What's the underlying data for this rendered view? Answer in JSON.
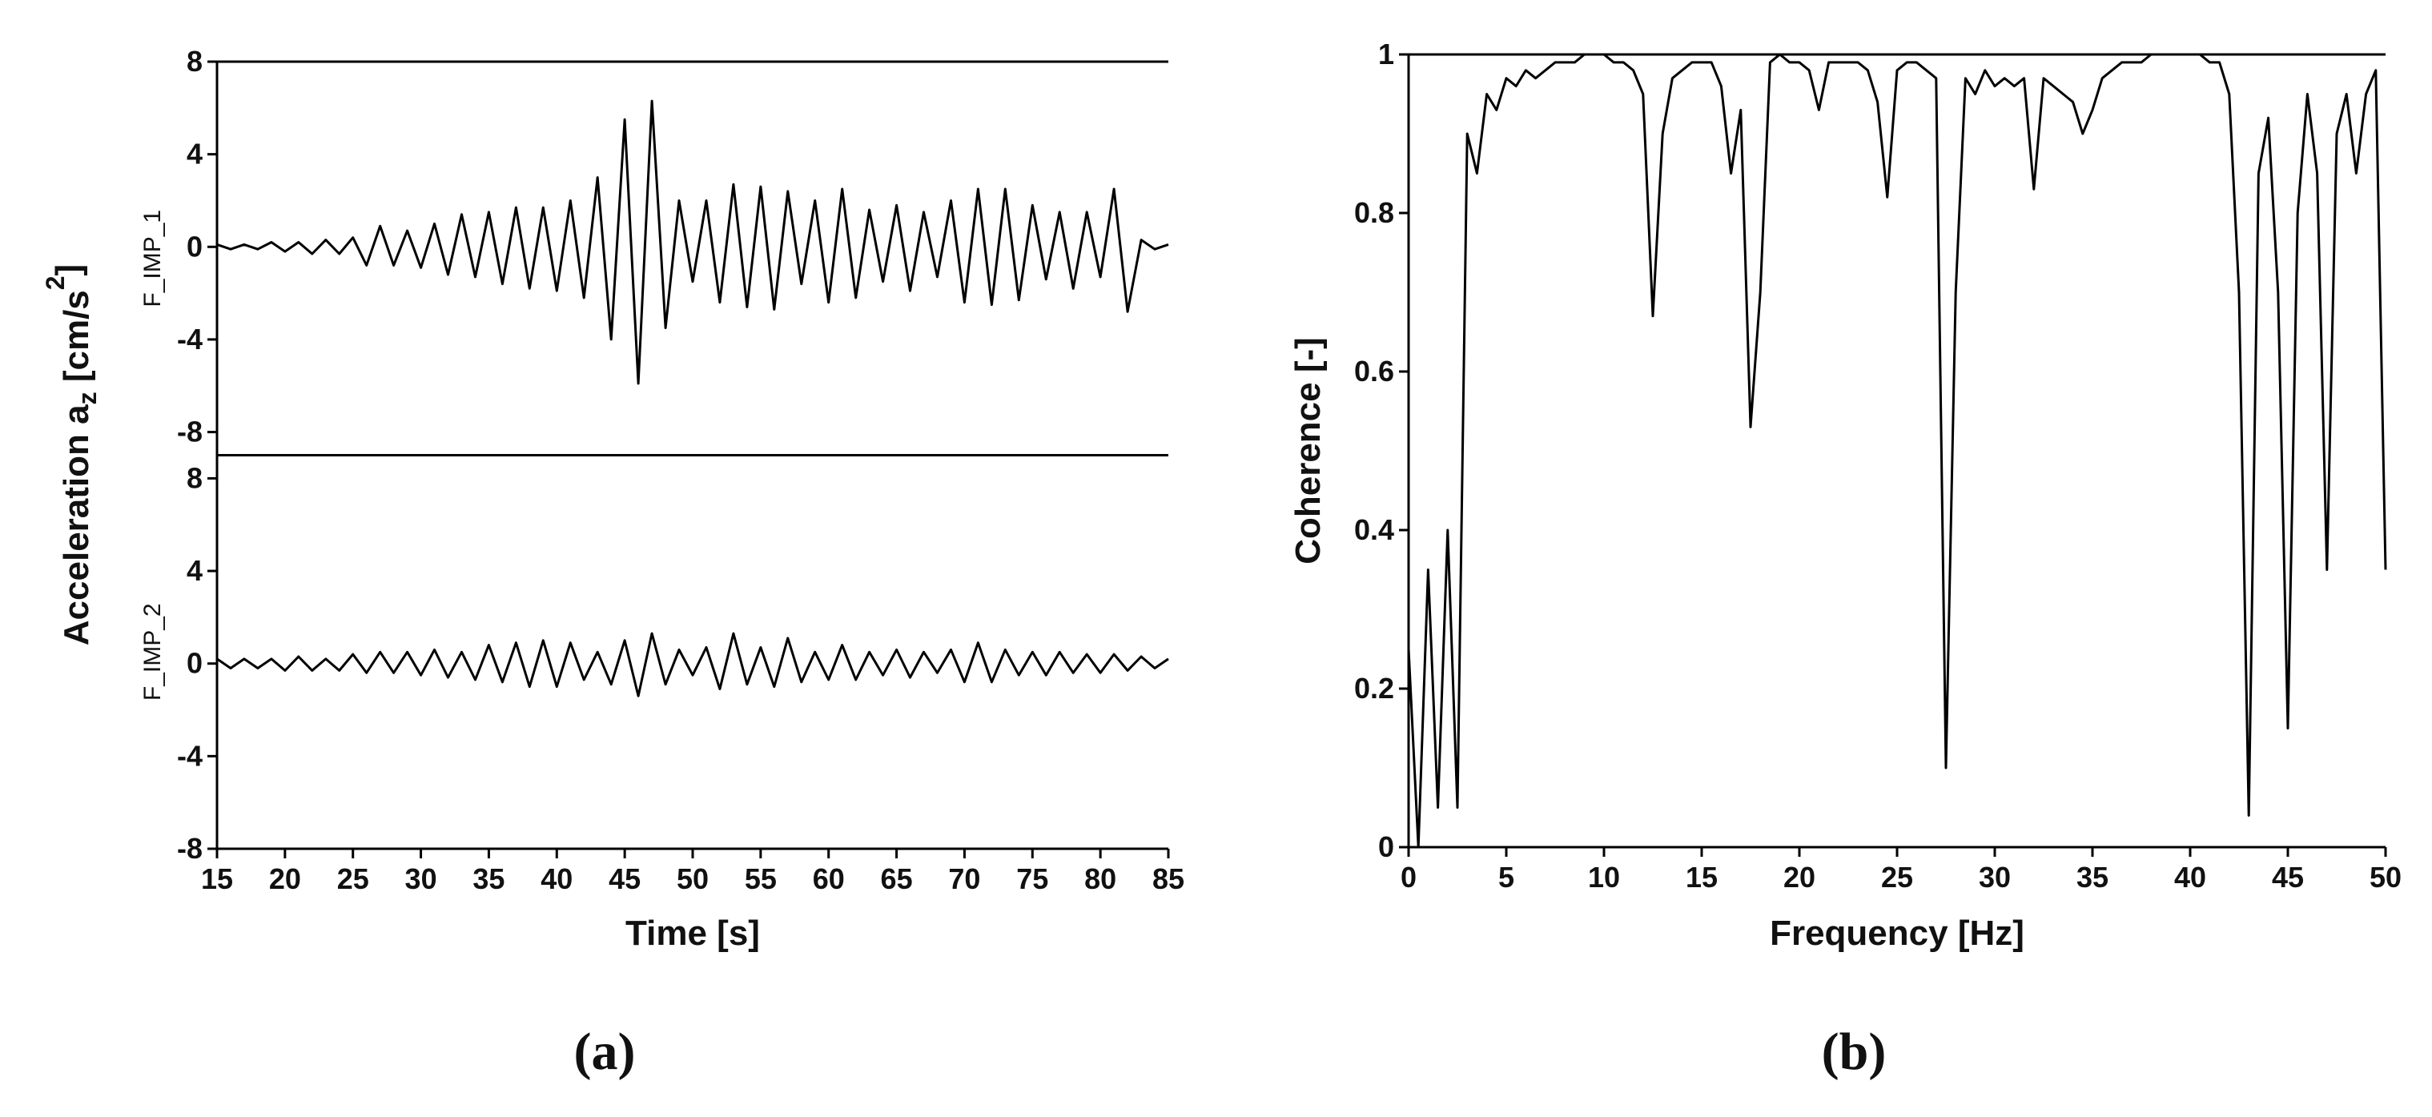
{
  "chart_data": [
    {
      "type": "line",
      "label": "(a)",
      "xlabel": "Time [s]",
      "ylabel": {
        "text": "Acceleration a",
        "sub": "z",
        "unit": " [cm/s",
        "sup": "2",
        "close": "]"
      },
      "xlim": [
        15,
        85
      ],
      "xticks": [
        15,
        20,
        25,
        30,
        35,
        40,
        45,
        50,
        55,
        60,
        65,
        70,
        75,
        80,
        85
      ],
      "x": [
        15,
        16,
        17,
        18,
        19,
        20,
        21,
        22,
        23,
        24,
        25,
        26,
        27,
        28,
        29,
        30,
        31,
        32,
        33,
        34,
        35,
        36,
        37,
        38,
        39,
        40,
        41,
        42,
        43,
        44,
        45,
        46,
        47,
        48,
        49,
        50,
        51,
        52,
        53,
        54,
        55,
        56,
        57,
        58,
        59,
        60,
        61,
        62,
        63,
        64,
        65,
        66,
        67,
        68,
        69,
        70,
        71,
        72,
        73,
        74,
        75,
        76,
        77,
        78,
        79,
        80,
        81,
        82,
        83,
        84,
        85
      ],
      "panels": [
        {
          "ylim": [
            -9,
            8
          ],
          "yticks": [
            -8,
            -4,
            0,
            4,
            8
          ],
          "series": [
            {
              "name": "F_IMP_1",
              "color": "#000000",
              "values": [
                0.1,
                -0.1,
                0.1,
                -0.1,
                0.2,
                -0.2,
                0.2,
                -0.3,
                0.3,
                -0.3,
                0.4,
                -0.8,
                0.9,
                -0.8,
                0.7,
                -0.9,
                1.0,
                -1.2,
                1.4,
                -1.3,
                1.5,
                -1.6,
                1.7,
                -1.8,
                1.7,
                -1.9,
                2.0,
                -2.2,
                3.0,
                -4.0,
                5.5,
                -5.9,
                6.3,
                -3.5,
                2.0,
                -1.5,
                2.0,
                -2.4,
                2.7,
                -2.6,
                2.6,
                -2.7,
                2.4,
                -1.6,
                2.0,
                -2.4,
                2.5,
                -2.2,
                1.6,
                -1.5,
                1.8,
                -1.9,
                1.5,
                -1.3,
                2.0,
                -2.4,
                2.5,
                -2.5,
                2.5,
                -2.3,
                1.8,
                -1.4,
                1.5,
                -1.8,
                1.5,
                -1.3,
                2.5,
                -2.8,
                0.3,
                -0.1,
                0.1
              ]
            }
          ]
        },
        {
          "ylim": [
            -8,
            9
          ],
          "yticks": [
            -8,
            -4,
            0,
            4,
            8
          ],
          "series": [
            {
              "name": "F_IMP_2",
              "color": "#000000",
              "values": [
                0.2,
                -0.2,
                0.2,
                -0.2,
                0.2,
                -0.3,
                0.3,
                -0.3,
                0.2,
                -0.3,
                0.4,
                -0.4,
                0.5,
                -0.4,
                0.5,
                -0.5,
                0.6,
                -0.6,
                0.5,
                -0.7,
                0.8,
                -0.8,
                0.9,
                -1.0,
                1.0,
                -1.0,
                0.9,
                -0.7,
                0.5,
                -0.9,
                1.0,
                -1.4,
                1.3,
                -0.9,
                0.6,
                -0.5,
                0.7,
                -1.1,
                1.3,
                -0.9,
                0.7,
                -1.0,
                1.1,
                -0.8,
                0.5,
                -0.7,
                0.8,
                -0.7,
                0.5,
                -0.5,
                0.6,
                -0.6,
                0.5,
                -0.4,
                0.6,
                -0.8,
                0.9,
                -0.8,
                0.6,
                -0.5,
                0.5,
                -0.5,
                0.5,
                -0.4,
                0.4,
                -0.4,
                0.4,
                -0.3,
                0.3,
                -0.2,
                0.2
              ]
            }
          ]
        }
      ]
    },
    {
      "type": "line",
      "label": "(b)",
      "xlabel": "Frequency [Hz]",
      "ylabel": "Coherence [-]",
      "xlim": [
        0,
        50
      ],
      "xticks": [
        0,
        5,
        10,
        15,
        20,
        25,
        30,
        35,
        40,
        45,
        50
      ],
      "ylim": [
        0,
        1
      ],
      "yticks": [
        0,
        0.2,
        0.4,
        0.6,
        0.8,
        1
      ],
      "x": [
        0,
        0.5,
        1,
        1.5,
        2,
        2.5,
        3,
        3.5,
        4,
        4.5,
        5,
        5.5,
        6,
        6.5,
        7,
        7.5,
        8,
        8.5,
        9,
        9.5,
        10,
        10.5,
        11,
        11.5,
        12,
        12.5,
        13,
        13.5,
        14,
        14.5,
        15,
        15.5,
        16,
        16.5,
        17,
        17.5,
        18,
        18.5,
        19,
        19.5,
        20,
        20.5,
        21,
        21.5,
        22,
        22.5,
        23,
        23.5,
        24,
        24.5,
        25,
        25.5,
        26,
        26.5,
        27,
        27.5,
        28,
        28.5,
        29,
        29.5,
        30,
        30.5,
        31,
        31.5,
        32,
        32.5,
        33,
        33.5,
        34,
        34.5,
        35,
        35.5,
        36,
        36.5,
        37,
        37.5,
        38,
        38.5,
        39,
        39.5,
        40,
        40.5,
        41,
        41.5,
        42,
        42.5,
        43,
        43.5,
        44,
        44.5,
        45,
        45.5,
        46,
        46.5,
        47,
        47.5,
        48,
        48.5,
        49,
        49.5,
        50
      ],
      "series": [
        {
          "color": "#000000",
          "values": [
            0.25,
            0.0,
            0.35,
            0.05,
            0.4,
            0.05,
            0.9,
            0.85,
            0.95,
            0.93,
            0.97,
            0.96,
            0.98,
            0.97,
            0.98,
            0.99,
            0.99,
            0.99,
            1.0,
            1.0,
            1.0,
            0.99,
            0.99,
            0.98,
            0.95,
            0.67,
            0.9,
            0.97,
            0.98,
            0.99,
            0.99,
            0.99,
            0.96,
            0.85,
            0.93,
            0.53,
            0.7,
            0.99,
            1.0,
            0.99,
            0.99,
            0.98,
            0.93,
            0.99,
            0.99,
            0.99,
            0.99,
            0.98,
            0.94,
            0.82,
            0.98,
            0.99,
            0.99,
            0.98,
            0.97,
            0.1,
            0.7,
            0.97,
            0.95,
            0.98,
            0.96,
            0.97,
            0.96,
            0.97,
            0.83,
            0.97,
            0.96,
            0.95,
            0.94,
            0.9,
            0.93,
            0.97,
            0.98,
            0.99,
            0.99,
            0.99,
            1.0,
            1.0,
            1.0,
            1.0,
            1.0,
            1.0,
            0.99,
            0.99,
            0.95,
            0.7,
            0.04,
            0.85,
            0.92,
            0.7,
            0.15,
            0.8,
            0.95,
            0.85,
            0.35,
            0.9,
            0.95,
            0.85,
            0.95,
            0.98,
            0.35
          ]
        }
      ]
    }
  ]
}
